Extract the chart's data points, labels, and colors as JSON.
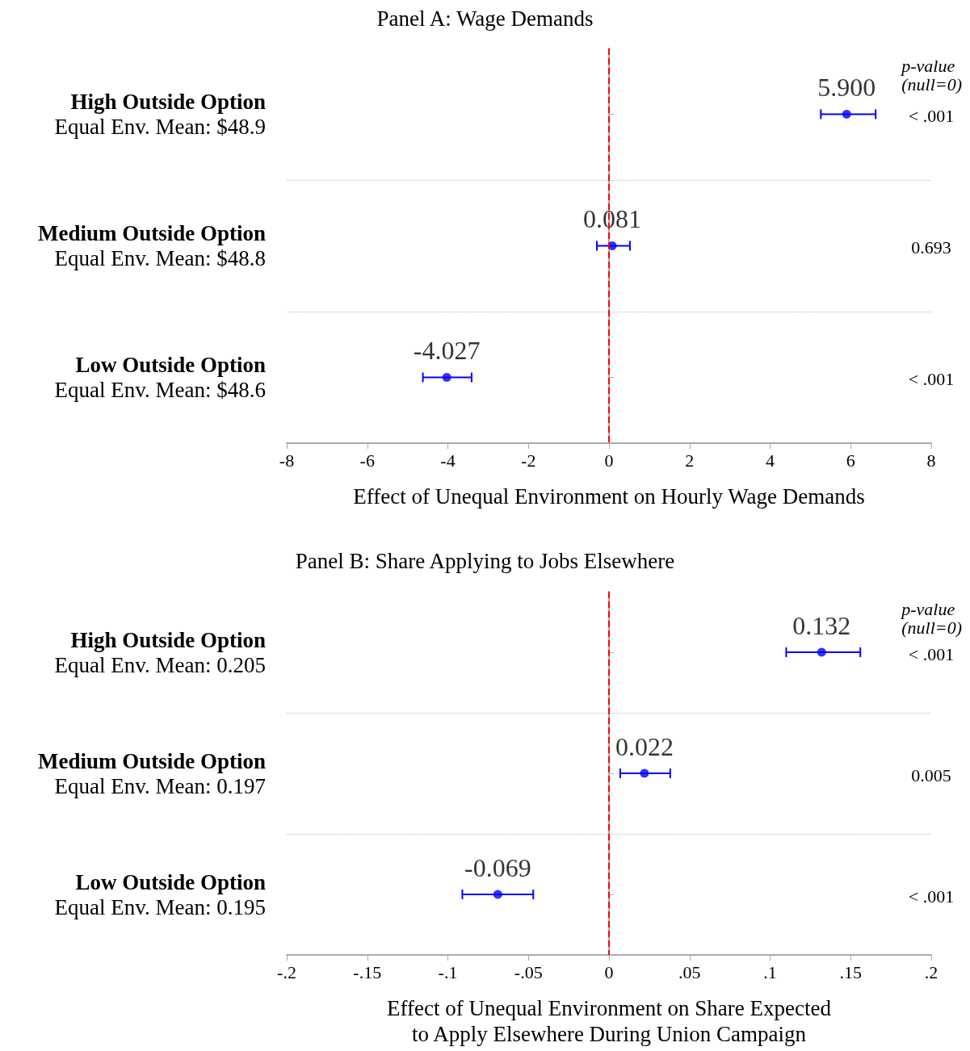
{
  "chart_data": [
    {
      "type": "scatter",
      "orientation": "horizontal",
      "title": "Panel A: Wage Demands",
      "xlabel": "Effect of Unequal Environment on Hourly Wage Demands",
      "categories": [
        "High Outside Option\nEqual Env. Mean: $48.9",
        "Medium Outside Option\nEqual Env. Mean: $48.8",
        "Low Outside Option\nEqual Env. Mean: $48.6"
      ],
      "values": [
        5.9,
        0.081,
        -4.027
      ],
      "errors": [
        [
          5.26,
          6.62
        ],
        [
          -0.3,
          0.52
        ],
        [
          -4.62,
          -3.41
        ]
      ],
      "value_labels": [
        "5.900",
        "0.081",
        "-4.027"
      ],
      "color": "#0000ff",
      "marker": "circle",
      "xlim": [
        -8,
        8
      ],
      "xticks": [
        -8,
        -6,
        -4,
        -2,
        0,
        2,
        4,
        6,
        8
      ],
      "grid": "y",
      "ref_lines": [
        {
          "axis": "x",
          "value": 0,
          "color": "#ff0000",
          "line_style": "dashed"
        }
      ],
      "annotations": [
        "p-value\n(null=0)",
        "< .001",
        "0.693",
        "< .001"
      ]
    },
    {
      "type": "scatter",
      "orientation": "horizontal",
      "title": "Panel B: Share Applying to Jobs Elsewhere",
      "xlabel": "Effect of Unequal Environment on Share Expected\nto Apply Elsewhere During Union Campaign",
      "categories": [
        "High Outside Option\nEqual Env. Mean: 0.205",
        "Medium Outside Option\nEqual Env. Mean: 0.197",
        "Low Outside Option\nEqual Env. Mean: 0.195"
      ],
      "values": [
        0.132,
        0.022,
        -0.069
      ],
      "errors": [
        [
          0.11,
          0.156
        ],
        [
          0.007,
          0.038
        ],
        [
          -0.091,
          -0.047
        ]
      ],
      "value_labels": [
        "0.132",
        "0.022",
        "-0.069"
      ],
      "color": "#0000ff",
      "marker": "circle",
      "xlim": [
        -0.2,
        0.2
      ],
      "xticks": [
        {
          "value": -0.2,
          "label": "-.2"
        },
        {
          "value": -0.15,
          "label": "-.15"
        },
        {
          "value": -0.1,
          "label": "-.1"
        },
        {
          "value": -0.05,
          "label": "-.05"
        },
        0,
        {
          "value": 0.05,
          "label": ".05"
        },
        {
          "value": 0.1,
          "label": ".1"
        },
        {
          "value": 0.15,
          "label": ".15"
        },
        {
          "value": 0.2,
          "label": ".2"
        }
      ],
      "grid": "y",
      "ref_lines": [
        {
          "axis": "x",
          "value": 0,
          "color": "#ff0000",
          "line_style": "dashed"
        }
      ],
      "annotations": [
        "p-value\n(null=0)",
        "< .001",
        "0.005",
        "< .001"
      ]
    }
  ]
}
